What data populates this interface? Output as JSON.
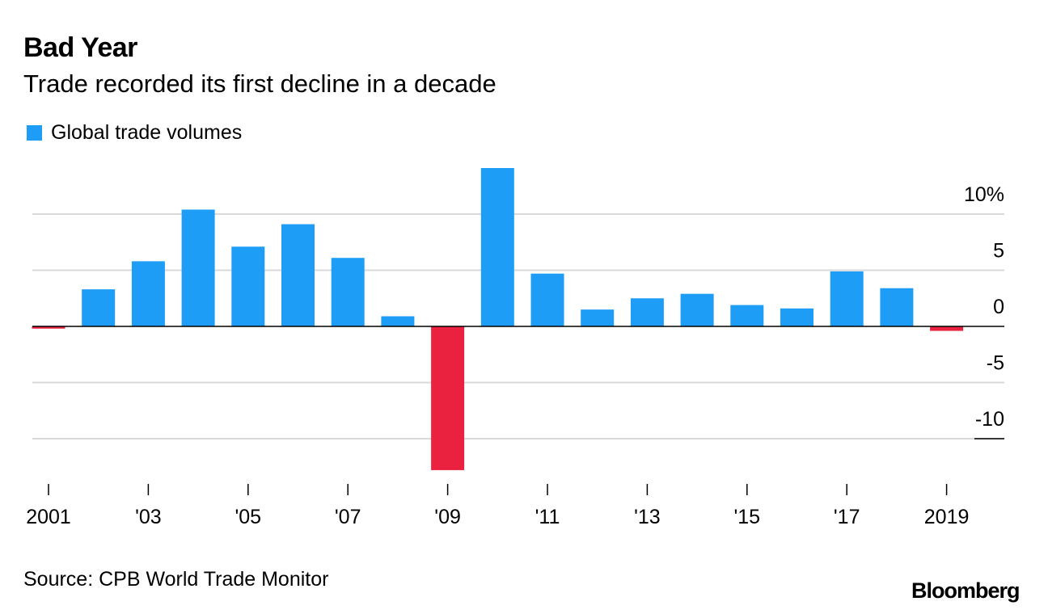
{
  "title": "Bad Year",
  "subtitle": "Trade recorded its first decline in a decade",
  "legend_label": "Global trade volumes",
  "source": "Source: CPB World Trade Monitor",
  "logo": "Bloomberg",
  "colors": {
    "positive": "#1e9df7",
    "negative": "#ea213f",
    "grid": "#d9d9d9",
    "text": "#000000"
  },
  "chart_data": {
    "type": "bar",
    "title": "Bad Year",
    "subtitle": "Trade recorded its first decline in a decade",
    "xlabel": "",
    "ylabel": "",
    "legend": [
      "Global trade volumes"
    ],
    "categories": [
      "2001",
      "2002",
      "2003",
      "2004",
      "2005",
      "2006",
      "2007",
      "2008",
      "2009",
      "2010",
      "2011",
      "2012",
      "2013",
      "2014",
      "2015",
      "2016",
      "2017",
      "2018",
      "2019"
    ],
    "series": [
      {
        "name": "Global trade volumes",
        "values": [
          -0.2,
          3.3,
          5.8,
          10.4,
          7.1,
          9.1,
          6.1,
          0.9,
          -12.8,
          14.1,
          4.7,
          1.5,
          2.5,
          2.9,
          1.9,
          1.6,
          4.9,
          3.4,
          -0.4
        ]
      }
    ],
    "ylim": [
      -13.5,
      14.5
    ],
    "yticks": [
      10,
      5,
      0,
      -5,
      -10
    ],
    "ytick_labels": [
      "10%",
      "5",
      "0",
      "-5",
      "-10"
    ],
    "xtick_labels": [
      "2001",
      "'03",
      "'05",
      "'07",
      "'09",
      "'11",
      "'13",
      "'15",
      "'17",
      "2019"
    ],
    "xtick_categories": [
      "2001",
      "2003",
      "2005",
      "2007",
      "2009",
      "2011",
      "2013",
      "2015",
      "2017",
      "2019"
    ],
    "grid": true
  }
}
